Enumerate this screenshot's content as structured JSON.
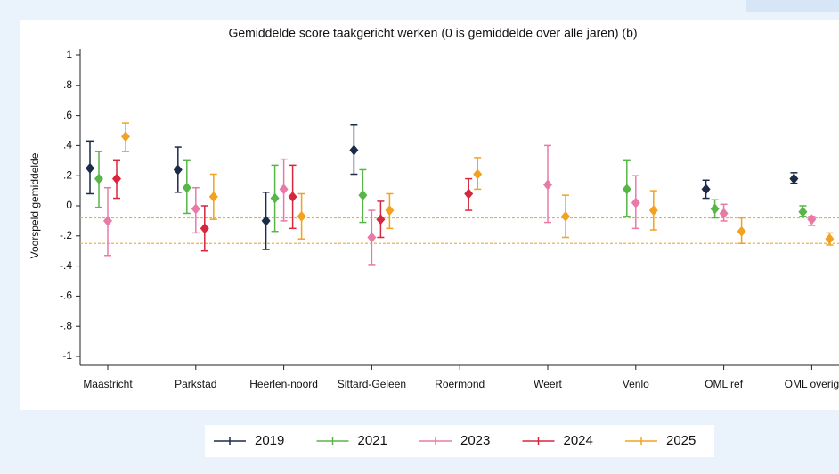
{
  "chart_data": {
    "type": "errorbar",
    "title": "Gemiddelde score taakgericht werken (0 is gemiddelde over alle jaren) (b)",
    "y_label": "Voorspeld gemiddelde",
    "categories": [
      "Maastricht",
      "Parkstad",
      "Heerlen-noord",
      "Sittard-Geleen",
      "Roermond",
      "Weert",
      "Venlo",
      "OML ref",
      "OML overig"
    ],
    "ylim": [
      -1,
      1
    ],
    "yticks": [
      1,
      {
        "value": 0.8,
        "label": ".8"
      },
      {
        "value": 0.6,
        "label": ".6"
      },
      {
        "value": 0.4,
        "label": ".4"
      },
      {
        "value": 0.2,
        "label": ".2"
      },
      0,
      {
        "value": -0.2,
        "label": "-.2"
      },
      {
        "value": -0.4,
        "label": "-.4"
      },
      {
        "value": -0.6,
        "label": "-.6"
      },
      {
        "value": -0.8,
        "label": "-.8"
      },
      -1
    ],
    "reference_lines": [
      {
        "value": -0.08,
        "color": "#f0b040"
      },
      {
        "value": -0.25,
        "color": "#f0b040"
      }
    ],
    "legend_position": "bottom",
    "series": [
      {
        "name": "2019",
        "color": "#1b2b48",
        "values": [
          0.25,
          0.24,
          -0.1,
          0.37,
          null,
          null,
          null,
          0.11,
          0.18
        ],
        "lower": [
          0.08,
          0.09,
          -0.29,
          0.21,
          null,
          null,
          null,
          0.05,
          0.15
        ],
        "upper": [
          0.43,
          0.39,
          0.09,
          0.54,
          null,
          null,
          null,
          0.17,
          0.22
        ]
      },
      {
        "name": "2021",
        "color": "#58b548",
        "values": [
          0.18,
          0.12,
          0.05,
          0.07,
          null,
          null,
          0.11,
          -0.02,
          -0.04
        ],
        "lower": [
          -0.01,
          -0.05,
          -0.17,
          -0.11,
          null,
          null,
          -0.07,
          -0.08,
          -0.07
        ],
        "upper": [
          0.36,
          0.3,
          0.27,
          0.24,
          null,
          null,
          0.3,
          0.04,
          0.0
        ]
      },
      {
        "name": "2023",
        "color": "#e97aa8",
        "values": [
          -0.1,
          -0.02,
          0.11,
          -0.21,
          null,
          0.14,
          0.02,
          -0.05,
          -0.09
        ],
        "lower": [
          -0.33,
          -0.18,
          -0.1,
          -0.39,
          null,
          -0.11,
          -0.15,
          -0.1,
          -0.13
        ],
        "upper": [
          0.12,
          0.12,
          0.31,
          -0.03,
          null,
          0.4,
          0.2,
          0.01,
          -0.07
        ]
      },
      {
        "name": "2024",
        "color": "#d7263d",
        "values": [
          0.18,
          -0.15,
          0.06,
          -0.09,
          0.08,
          null,
          null,
          null,
          null
        ],
        "lower": [
          0.05,
          -0.3,
          -0.15,
          -0.21,
          -0.03,
          null,
          null,
          null,
          null
        ],
        "upper": [
          0.3,
          0.0,
          0.27,
          0.03,
          0.18,
          null,
          null,
          null,
          null
        ]
      },
      {
        "name": "2025",
        "color": "#f2a21f",
        "values": [
          0.46,
          0.06,
          -0.07,
          -0.03,
          0.21,
          -0.07,
          -0.03,
          -0.17,
          -0.22
        ],
        "lower": [
          0.36,
          -0.09,
          -0.22,
          -0.15,
          0.11,
          -0.21,
          -0.16,
          -0.25,
          -0.26
        ],
        "upper": [
          0.55,
          0.21,
          0.08,
          0.08,
          0.32,
          0.07,
          0.1,
          -0.08,
          -0.18
        ]
      }
    ]
  }
}
